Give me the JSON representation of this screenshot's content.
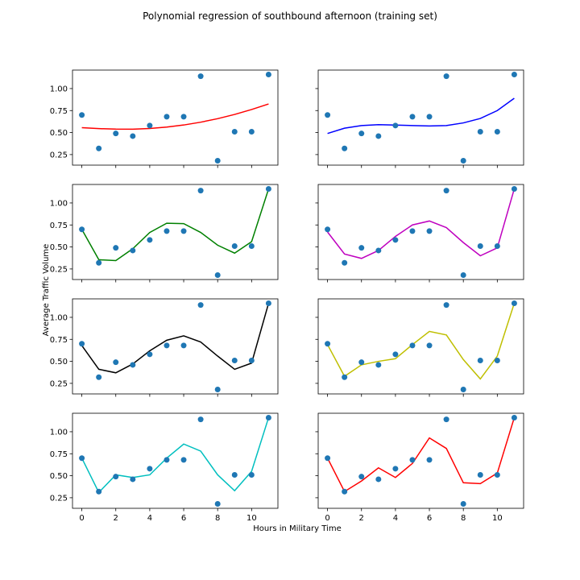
{
  "figure": {
    "title": "Polynomial regression of southbound afternoon (training set)",
    "xlabel": "Hours in Military Time",
    "ylabel": "Average Traffic Volume"
  },
  "chart_data": {
    "type": "scatter",
    "title": "Polynomial regression of southbound afternoon (training set)",
    "xlabel": "Hours in Military Time",
    "ylabel": "Average Traffic Volume",
    "layout": "4x2 grid of subplots, shared axes",
    "xlim": [
      -0.55,
      11.55
    ],
    "ylim": [
      0.13,
      1.21
    ],
    "x_ticks": [
      0,
      2,
      4,
      6,
      8,
      10
    ],
    "y_ticks": [
      0.25,
      0.5,
      0.75,
      1.0
    ],
    "x_tick_labels": [
      "0",
      "2",
      "4",
      "6",
      "8",
      "10"
    ],
    "y_tick_labels": [
      "0.25",
      "0.50",
      "0.75",
      "1.00"
    ],
    "grid": false,
    "points_color": "#1f77b4",
    "points": {
      "x": [
        0,
        1,
        2,
        3,
        4,
        5,
        6,
        7,
        8,
        9,
        10,
        11
      ],
      "y": [
        0.7,
        0.32,
        0.49,
        0.46,
        0.58,
        0.68,
        0.68,
        1.14,
        0.18,
        0.51,
        0.51,
        1.16
      ]
    },
    "panels": [
      {
        "color": "#ff0000",
        "y": [
          0.555,
          0.545,
          0.539,
          0.538,
          0.546,
          0.562,
          0.586,
          0.618,
          0.658,
          0.706,
          0.762,
          0.825
        ]
      },
      {
        "color": "#0000ff",
        "y": [
          0.49,
          0.55,
          0.58,
          0.59,
          0.585,
          0.58,
          0.575,
          0.58,
          0.61,
          0.66,
          0.75,
          0.89
        ]
      },
      {
        "color": "#008000",
        "y": [
          0.7,
          0.355,
          0.345,
          0.48,
          0.665,
          0.77,
          0.765,
          0.665,
          0.52,
          0.43,
          0.56,
          1.16
        ]
      },
      {
        "color": "#bf00bf",
        "y": [
          0.67,
          0.42,
          0.37,
          0.46,
          0.62,
          0.75,
          0.795,
          0.72,
          0.55,
          0.4,
          0.49,
          1.16
        ]
      },
      {
        "color": "#000000",
        "y": [
          0.68,
          0.41,
          0.37,
          0.47,
          0.62,
          0.74,
          0.79,
          0.72,
          0.56,
          0.41,
          0.48,
          1.16
        ]
      },
      {
        "color": "#bfbf00",
        "y": [
          0.69,
          0.33,
          0.46,
          0.5,
          0.53,
          0.69,
          0.84,
          0.8,
          0.52,
          0.3,
          0.56,
          1.16
        ]
      },
      {
        "color": "#00bfbf",
        "y": [
          0.7,
          0.31,
          0.51,
          0.48,
          0.51,
          0.7,
          0.86,
          0.78,
          0.51,
          0.33,
          0.55,
          1.16
        ]
      },
      {
        "color": "#ff0000",
        "y": [
          0.7,
          0.32,
          0.44,
          0.59,
          0.48,
          0.64,
          0.93,
          0.81,
          0.42,
          0.41,
          0.53,
          1.16
        ]
      }
    ]
  }
}
